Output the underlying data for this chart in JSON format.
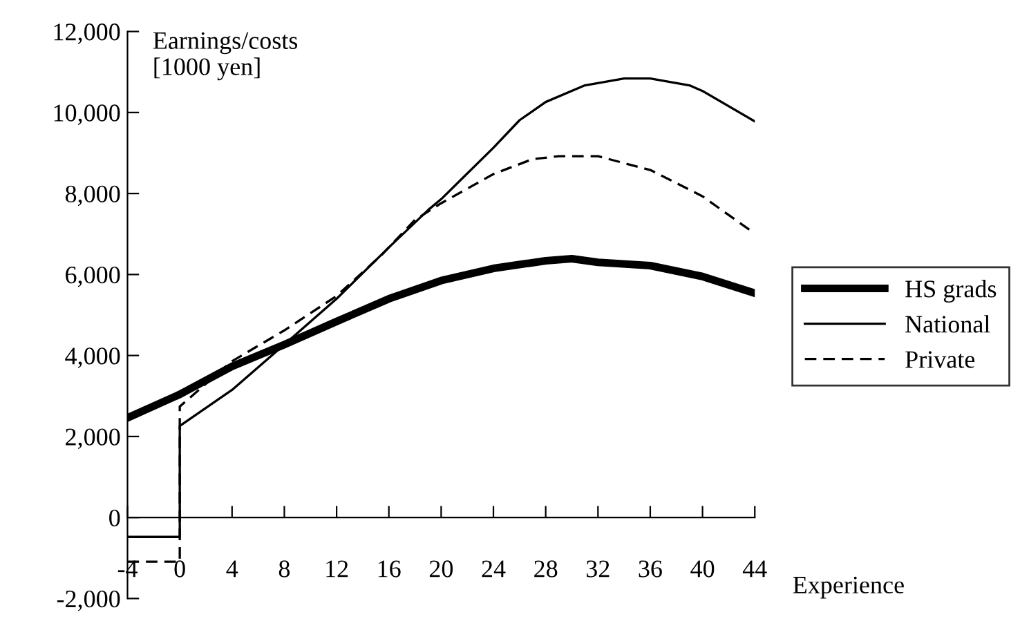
{
  "chart_data": {
    "type": "line",
    "ylabel": "Earnings/costs\n[1000 yen]",
    "xlabel": "Experience",
    "xlim": [
      -4,
      44
    ],
    "xticks": [
      -4,
      0,
      4,
      8,
      12,
      16,
      20,
      24,
      28,
      32,
      36,
      40,
      44
    ],
    "ylim": [
      -2000,
      12000
    ],
    "yticks": [
      {
        "value": -2000,
        "label": "-2,000"
      },
      {
        "value": 0,
        "label": "0"
      },
      {
        "value": 2000,
        "label": "2,000"
      },
      {
        "value": 4000,
        "label": "4,000"
      },
      {
        "value": 6000,
        "label": "6,000"
      },
      {
        "value": 8000,
        "label": "8,000"
      },
      {
        "value": 10000,
        "label": "10,000"
      },
      {
        "value": 12000,
        "label": "12,000"
      }
    ],
    "grid": false,
    "legend": "right",
    "marker": "none",
    "series": [
      {
        "name": "HS grads",
        "color": "#000000",
        "line_style": "solid",
        "x": [
          -4,
          0,
          4,
          8,
          12,
          16,
          20,
          24,
          28,
          30,
          32,
          36,
          40,
          44
        ],
        "values": [
          2460,
          3040,
          3730,
          4270,
          4840,
          5400,
          5850,
          6150,
          6340,
          6390,
          6300,
          6220,
          5950,
          5540
        ]
      },
      {
        "name": "National",
        "color": "#000000",
        "line_style": "solid",
        "x": [
          -4,
          0,
          0,
          4,
          8,
          12,
          16,
          19,
          20,
          24,
          26,
          28,
          31,
          34,
          36,
          39,
          40,
          44
        ],
        "values": [
          -480,
          -480,
          2260,
          3150,
          4270,
          5400,
          6670,
          7590,
          7860,
          9130,
          9810,
          10260,
          10670,
          10840,
          10840,
          10670,
          10530,
          9780
        ]
      },
      {
        "name": "Private",
        "color": "#000000",
        "line_style": "dashed",
        "x": [
          -4,
          0,
          0,
          4,
          8,
          12,
          15.5,
          18,
          20,
          24,
          27,
          29,
          32,
          36,
          40,
          44
        ],
        "values": [
          -1090,
          -1090,
          2740,
          3860,
          4620,
          5470,
          6500,
          7350,
          7760,
          8480,
          8850,
          8920,
          8920,
          8580,
          7930,
          7010
        ]
      }
    ]
  }
}
